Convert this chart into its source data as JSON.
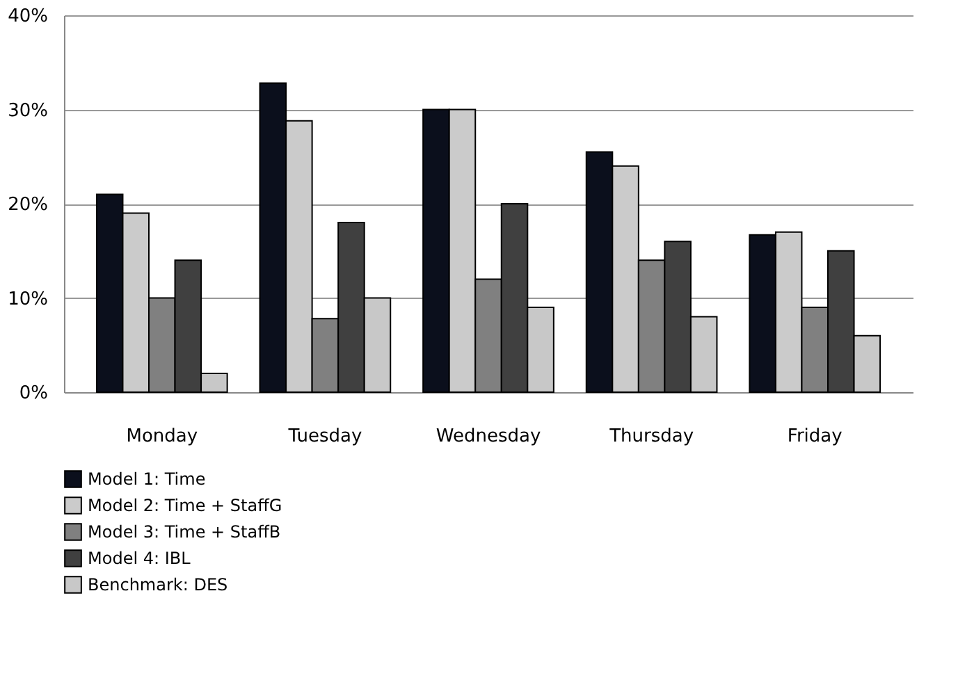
{
  "chart_data": {
    "type": "bar",
    "categories": [
      "Monday",
      "Tuesday",
      "Wednesday",
      "Thursday",
      "Friday"
    ],
    "series": [
      {
        "name": "Model 1: Time",
        "color": "#0b0f1c",
        "values": [
          21,
          32.8,
          30,
          25.5,
          16.7
        ]
      },
      {
        "name": "Model 2: Time + StaffG",
        "color": "#cbcbcb",
        "values": [
          19,
          28.8,
          30,
          24,
          17
        ]
      },
      {
        "name": "Model 3: Time + StaffB",
        "color": "#808080",
        "values": [
          10,
          7.8,
          12,
          14,
          9
        ]
      },
      {
        "name": "Model 4: IBL",
        "color": "#404040",
        "values": [
          14,
          18,
          20,
          16,
          15
        ]
      },
      {
        "name": "Benchmark: DES",
        "color": "#c8c8c8",
        "values": [
          2,
          10,
          9,
          8,
          6
        ]
      }
    ],
    "ylim": [
      0,
      40
    ],
    "yticks": [
      {
        "value": 0,
        "label": "0%"
      },
      {
        "value": 10,
        "label": "10%"
      },
      {
        "value": 20,
        "label": "20%"
      },
      {
        "value": 30,
        "label": "30%"
      },
      {
        "value": 40,
        "label": "40%"
      }
    ],
    "grid": "y",
    "legend": "bottom"
  }
}
